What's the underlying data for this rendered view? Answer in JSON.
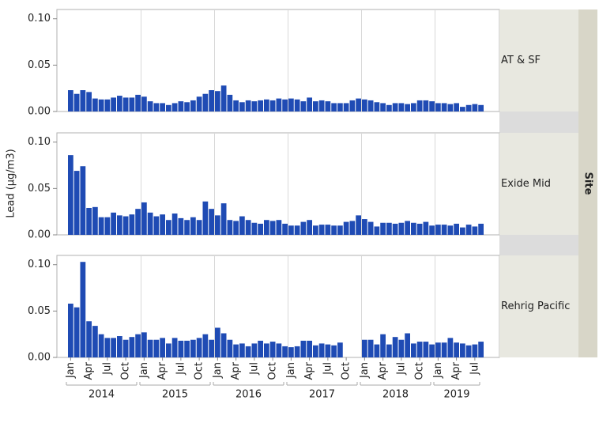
{
  "chart_data": {
    "type": "bar",
    "y_label": "Lead (µg/m3)",
    "facet_label": "Site",
    "color": "#1f4bb4",
    "ylim": [
      0,
      0.11
    ],
    "yticks": [
      {
        "value": 0,
        "label": "0.00"
      },
      {
        "value": 0.05,
        "label": "0.05"
      },
      {
        "value": 0.1,
        "label": "0.10"
      }
    ],
    "grid": true,
    "categories": [
      "Jan",
      null,
      null,
      "Apr",
      null,
      null,
      "Jul",
      null,
      null,
      "Oct",
      null,
      null,
      "Jan",
      null,
      null,
      "Apr",
      null,
      null,
      "Jul",
      null,
      null,
      "Oct",
      null,
      null,
      "Jan",
      null,
      null,
      "Apr",
      null,
      null,
      "Jul",
      null,
      null,
      "Oct",
      null,
      null,
      "Jan",
      null,
      null,
      "Apr",
      null,
      null,
      "Jul",
      null,
      null,
      "Oct",
      null,
      null,
      "Jan",
      null,
      null,
      "Apr",
      null,
      null,
      "Jul",
      null,
      null,
      "Oct",
      null,
      null,
      "Jan",
      null,
      null,
      "Apr",
      null,
      null,
      "Jul",
      null
    ],
    "groups": [
      "2014",
      "2015",
      "2016",
      "2017",
      "2018",
      "2019"
    ],
    "panels": [
      {
        "name": "AT & SF",
        "values": [
          0.023,
          0.019,
          0.023,
          0.021,
          0.014,
          0.013,
          0.013,
          0.015,
          0.017,
          0.015,
          0.015,
          0.018,
          0.016,
          0.011,
          0.009,
          0.009,
          0.007,
          0.009,
          0.011,
          0.01,
          0.012,
          0.016,
          0.019,
          0.023,
          0.022,
          0.028,
          0.018,
          0.012,
          0.01,
          0.012,
          0.011,
          0.012,
          0.013,
          0.012,
          0.014,
          0.013,
          0.014,
          0.013,
          0.011,
          0.015,
          0.011,
          0.012,
          0.011,
          0.009,
          0.009,
          0.009,
          0.012,
          0.014,
          0.013,
          0.012,
          0.01,
          0.009,
          0.007,
          0.009,
          0.009,
          0.008,
          0.009,
          0.012,
          0.012,
          0.011,
          0.009,
          0.009,
          0.008,
          0.009,
          0.005,
          0.007,
          0.008,
          0.007
        ]
      },
      {
        "name": "Exide Mid",
        "values": [
          0.086,
          0.069,
          0.074,
          0.029,
          0.03,
          0.019,
          0.019,
          0.024,
          0.021,
          0.02,
          0.022,
          0.028,
          0.035,
          0.024,
          0.02,
          0.022,
          0.016,
          0.023,
          0.018,
          0.016,
          0.019,
          0.016,
          0.036,
          0.028,
          0.021,
          0.034,
          0.016,
          0.015,
          0.02,
          0.016,
          0.013,
          0.012,
          0.016,
          0.015,
          0.016,
          0.012,
          0.01,
          0.01,
          0.014,
          0.016,
          0.01,
          0.011,
          0.011,
          0.01,
          0.01,
          0.014,
          0.015,
          0.021,
          0.017,
          0.014,
          0.009,
          0.013,
          0.013,
          0.012,
          0.013,
          0.015,
          0.013,
          0.012,
          0.014,
          0.01,
          0.011,
          0.011,
          0.01,
          0.012,
          0.008,
          0.011,
          0.009,
          0.012
        ]
      },
      {
        "name": "Rehrig Pacific",
        "values": [
          0.058,
          0.054,
          0.103,
          0.039,
          0.034,
          0.025,
          0.021,
          0.021,
          0.023,
          0.019,
          0.022,
          0.025,
          0.027,
          0.019,
          0.019,
          0.021,
          0.015,
          0.021,
          0.018,
          0.018,
          0.019,
          0.021,
          0.025,
          0.019,
          0.032,
          0.026,
          0.019,
          0.014,
          0.015,
          0.012,
          0.015,
          0.018,
          0.015,
          0.017,
          0.015,
          0.012,
          0.011,
          0.012,
          0.018,
          0.018,
          0.013,
          0.015,
          0.014,
          0.013,
          0.016,
          null,
          null,
          null,
          0.019,
          0.019,
          0.014,
          0.025,
          0.014,
          0.022,
          0.019,
          0.026,
          0.015,
          0.017,
          0.017,
          0.014,
          0.016,
          0.016,
          0.021,
          0.016,
          0.015,
          0.013,
          0.014,
          0.017
        ]
      }
    ]
  }
}
